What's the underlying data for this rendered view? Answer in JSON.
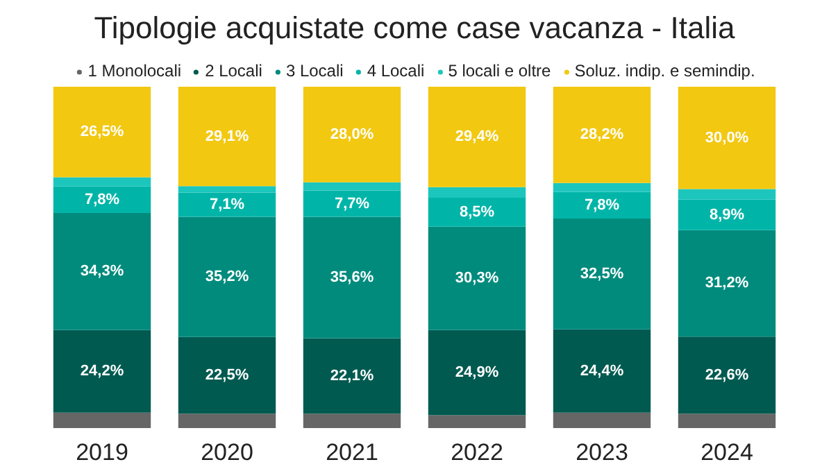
{
  "chart_data": {
    "type": "bar",
    "title": "Tipologie acquistate come case vacanza - Italia",
    "stacked": true,
    "categories": [
      "2019",
      "2020",
      "2021",
      "2022",
      "2023",
      "2024"
    ],
    "ylim": [
      0,
      100
    ],
    "tick_labels": "x",
    "grid": false,
    "legend": "top",
    "series": [
      {
        "name": "1 Monolocali",
        "color": "#666666",
        "values": [
          4.5,
          4.2,
          4.2,
          3.8,
          4.5,
          4.2
        ]
      },
      {
        "name": "2 Locali",
        "color": "#005a50",
        "values": [
          24.2,
          22.5,
          22.1,
          24.9,
          24.4,
          22.6
        ],
        "value_labels": [
          "24,2%",
          "22,5%",
          "22,1%",
          "24,9%",
          "24,4%",
          "22,6%"
        ]
      },
      {
        "name": "3 Locali",
        "color": "#008b7d",
        "values": [
          34.3,
          35.2,
          35.6,
          30.3,
          32.5,
          31.2
        ],
        "value_labels": [
          "34,3%",
          "35,2%",
          "35,6%",
          "30,3%",
          "32,5%",
          "31,2%"
        ]
      },
      {
        "name": "4 Locali",
        "color": "#00b5a8",
        "values": [
          7.8,
          7.1,
          7.7,
          8.5,
          7.8,
          8.9
        ],
        "value_labels": [
          "7,8%",
          "7,1%",
          "7,7%",
          "8,5%",
          "7,8%",
          "8,9%"
        ]
      },
      {
        "name": "5 locali e oltre",
        "color": "#1cc6bd",
        "values": [
          2.7,
          1.9,
          2.4,
          3.1,
          2.6,
          3.1
        ]
      },
      {
        "name": "Soluz. indip. e semindip.",
        "color": "#f2c811",
        "values": [
          26.5,
          29.1,
          28.0,
          29.4,
          28.2,
          30.0
        ],
        "value_labels": [
          "26,5%",
          "29,1%",
          "28,0%",
          "29,4%",
          "28,2%",
          "30,0%"
        ]
      }
    ]
  }
}
